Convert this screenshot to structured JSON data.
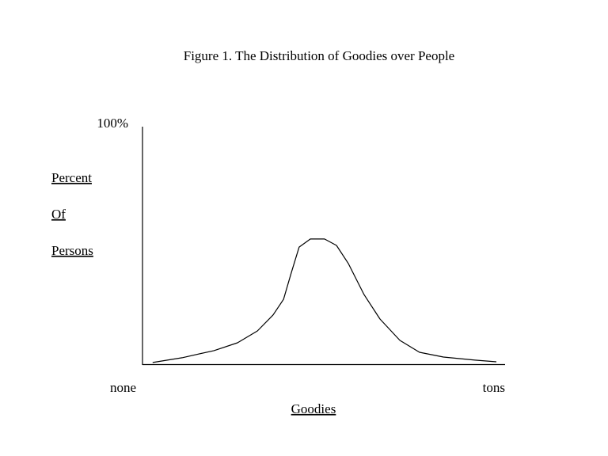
{
  "chart_data": {
    "type": "line",
    "title": "Figure 1. The Distribution of Goodies over People",
    "x_label": "Goodies",
    "y_label_lines": [
      "Percent",
      "Of",
      "Persons"
    ],
    "x": [
      2.8,
      10.9,
      19.7,
      26.2,
      31.7,
      36.0,
      38.9,
      41.0,
      43.2,
      46.3,
      50.2,
      53.5,
      56.8,
      61.1,
      65.5,
      71.0,
      76.4,
      83.0,
      91.7,
      97.6
    ],
    "values": [
      0.7,
      2.7,
      5.7,
      9,
      14,
      20.7,
      27.3,
      38.3,
      49.3,
      52.7,
      52.7,
      50,
      42.3,
      29.3,
      19,
      10,
      5,
      3,
      1.7,
      1
    ],
    "color": "#000000",
    "xlim": [
      0,
      100
    ],
    "xticks": [
      {
        "value": 0,
        "label": "none"
      },
      {
        "value": 100,
        "label": "tons"
      }
    ],
    "ylim": [
      0,
      100
    ],
    "yticks": [
      {
        "value": 100,
        "label": "100%"
      }
    ],
    "grid": false
  }
}
